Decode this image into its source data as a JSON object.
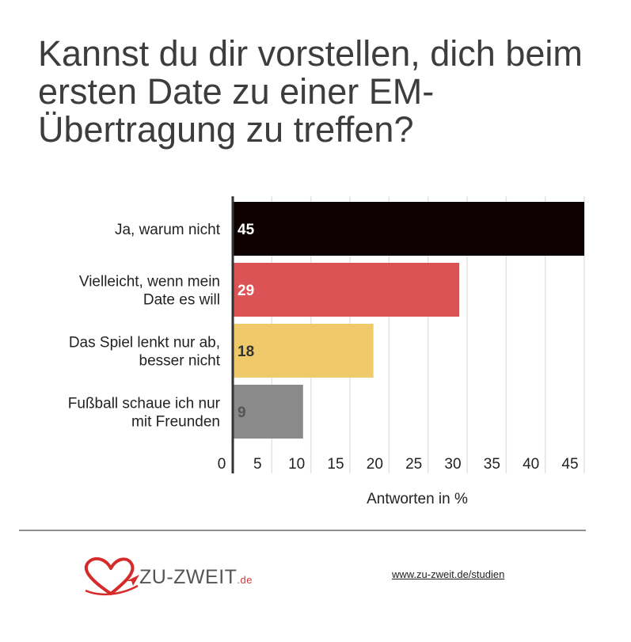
{
  "title": "Kannst du dir vorstellen, dich beim ersten Date zu einer EM-Übertragung zu treffen?",
  "chart_data": {
    "type": "bar",
    "orientation": "horizontal",
    "categories": [
      [
        "Ja, warum nicht"
      ],
      [
        "Vielleicht, wenn mein",
        "Date es will"
      ],
      [
        "Das Spiel lenkt nur ab,",
        "besser nicht"
      ],
      [
        "Fußball schaue ich nur",
        "mit Freunden"
      ]
    ],
    "values": [
      45,
      29,
      18,
      9
    ],
    "colors": [
      "#0d0101",
      "#dc5355",
      "#efc96a",
      "#8a8a8a"
    ],
    "value_label_colors": [
      "#ffffff",
      "#ffffff",
      "#333333",
      "#555555"
    ],
    "xlim": [
      0,
      45
    ],
    "xticks": [
      0,
      5,
      10,
      15,
      20,
      25,
      30,
      35,
      40,
      45
    ],
    "xlabel": "Antworten in %",
    "grid": true
  },
  "footer": {
    "brand_main": "ZU-ZWEIT",
    "brand_suffix": ".de",
    "url": "www.zu-zweit.de/studien"
  },
  "colors": {
    "title": "#3d3d3d",
    "heart": "#d52b2b",
    "gridline": "#e3e3e3",
    "axis": "#333333"
  }
}
